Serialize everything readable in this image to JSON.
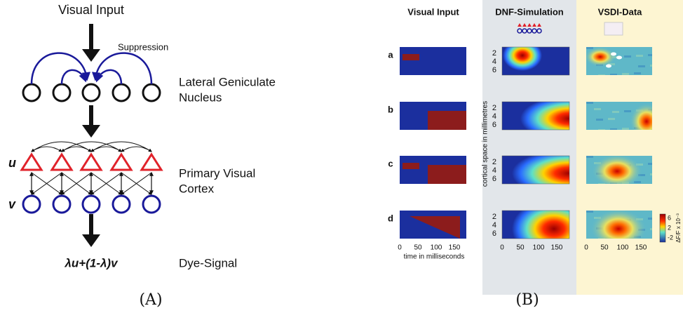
{
  "panel_a": {
    "label": "(A)",
    "input": "Visual Input",
    "suppression": "Suppression",
    "lgn": [
      "Lateral Geniculate",
      "Nucleus"
    ],
    "v1": [
      "Primary Visual",
      "Cortex"
    ],
    "u": "u",
    "v": "v",
    "formula": "λu+(1-λ)v",
    "output": "Dye-Signal"
  },
  "panel_b": {
    "label": "(B)",
    "columns": [
      "Visual Input",
      "DNF-Simulation",
      "VSDI-Data"
    ],
    "rows": [
      "a",
      "b",
      "c",
      "d"
    ],
    "yticks": [
      "2",
      "4",
      "6"
    ],
    "xticks": [
      "0",
      "50",
      "100",
      "150"
    ],
    "x_label": "time in milliseconds",
    "y_label": "cortical space in millimetres",
    "colorbar": {
      "title": "ΔF/F x 10⁻³",
      "ticks": [
        "6",
        "2",
        "-2"
      ]
    }
  }
}
